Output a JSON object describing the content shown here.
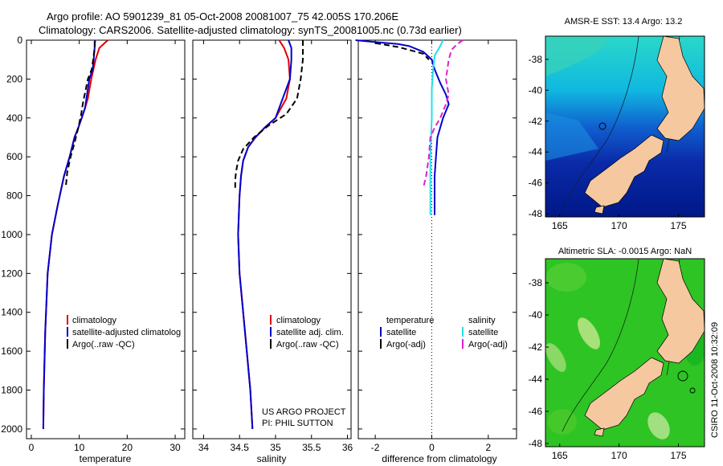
{
  "header": {
    "line1": "Argo profile: AO 5901239_81 05-Oct-2008 20081007_75 42.005S 170.206E",
    "line2": "Climatology: CARS2006. Satellite-adjusted climatology: synTS_20081005.nc (0.73d earlier)"
  },
  "colors": {
    "red": "#e00000",
    "blue": "#0000d0",
    "black": "#000000",
    "cyan": "#22e0e8",
    "magenta": "#e020d0",
    "land": "#f5c8a0"
  },
  "project": {
    "line1": "US ARGO PROJECT",
    "line2": "PI: PHIL SUTTON"
  },
  "credit": "CSIRO 11-Oct-2008 10:32:09",
  "chart_data": [
    {
      "id": "temperature",
      "type": "line",
      "xlabel": "temperature",
      "ylabel": "",
      "xlim": [
        -1,
        32
      ],
      "ylim": [
        2050,
        0
      ],
      "xticks": [
        0,
        10,
        20,
        30
      ],
      "yticks": [
        0,
        200,
        400,
        600,
        800,
        1000,
        1200,
        1400,
        1600,
        1800,
        2000
      ],
      "legend": [
        "climatology",
        "satellite-adjusted climatolog",
        "Argo(..raw -QC)"
      ],
      "series": [
        {
          "name": "climatology",
          "color": "red",
          "dash": false,
          "x": [
            16.0,
            15.5,
            14.2,
            13.4,
            12.5,
            11.8,
            11.2,
            10.5,
            9.8,
            9.0,
            8.0,
            6.8,
            5.5,
            4.3,
            3.4,
            2.9,
            2.6,
            2.5
          ],
          "y": [
            0,
            10,
            40,
            100,
            200,
            300,
            350,
            400,
            450,
            500,
            600,
            700,
            850,
            1000,
            1200,
            1500,
            1800,
            2000
          ]
        },
        {
          "name": "satellite-adjusted climatology",
          "color": "blue",
          "dash": false,
          "x": [
            13.3,
            13.2,
            13.0,
            12.8,
            12.1,
            11.5,
            11.2,
            10.5,
            9.8,
            9.0,
            8.0,
            6.8,
            5.5,
            4.3,
            3.4,
            2.9,
            2.6,
            2.5
          ],
          "y": [
            0,
            40,
            100,
            150,
            200,
            300,
            350,
            400,
            450,
            500,
            600,
            700,
            850,
            1000,
            1200,
            1500,
            1800,
            2000
          ]
        },
        {
          "name": "Argo(..raw -QC)",
          "color": "black",
          "dash": true,
          "x": [
            13.2,
            13.2,
            13.1,
            12.9,
            12.6,
            11.8,
            11.3,
            10.8,
            10.4,
            9.8,
            9.1,
            8.2,
            7.5,
            7.2
          ],
          "y": [
            5,
            30,
            60,
            100,
            150,
            200,
            260,
            320,
            380,
            450,
            520,
            600,
            680,
            750
          ]
        }
      ]
    },
    {
      "id": "salinity",
      "type": "line",
      "xlabel": "salinity",
      "ylabel": "",
      "xlim": [
        33.85,
        36.05
      ],
      "ylim": [
        2050,
        0
      ],
      "xticks": [
        34,
        34.5,
        35,
        35.5,
        36
      ],
      "legend": [
        "climatology",
        "satellite adj. clim.",
        "Argo(..raw -QC)"
      ],
      "series": [
        {
          "name": "climatology",
          "color": "red",
          "dash": false,
          "x": [
            35.05,
            35.12,
            35.18,
            35.2,
            35.15,
            35.0,
            34.85,
            34.72,
            34.62,
            34.55,
            34.52,
            34.5,
            34.49,
            34.48,
            34.5,
            34.55,
            34.6,
            34.65,
            34.68
          ],
          "y": [
            0,
            40,
            100,
            200,
            300,
            400,
            450,
            500,
            550,
            620,
            700,
            800,
            900,
            1000,
            1200,
            1400,
            1600,
            1800,
            2000
          ]
        },
        {
          "name": "satellite adj. clim.",
          "color": "blue",
          "dash": false,
          "x": [
            35.18,
            35.22,
            35.22,
            35.2,
            35.1,
            35.0,
            34.85,
            34.72,
            34.62,
            34.55,
            34.52,
            34.5,
            34.49,
            34.48,
            34.5,
            34.55,
            34.6,
            34.65,
            34.68
          ],
          "y": [
            0,
            40,
            100,
            200,
            300,
            400,
            450,
            500,
            550,
            620,
            700,
            800,
            900,
            1000,
            1200,
            1400,
            1600,
            1800,
            2000
          ]
        },
        {
          "name": "Argo(..raw -QC)",
          "color": "black",
          "dash": true,
          "x": [
            35.38,
            35.38,
            35.38,
            35.35,
            35.3,
            35.15,
            34.9,
            34.7,
            34.55,
            34.48,
            34.45,
            34.44,
            34.44
          ],
          "y": [
            0,
            30,
            100,
            200,
            300,
            380,
            440,
            500,
            560,
            620,
            680,
            720,
            760
          ]
        }
      ]
    },
    {
      "id": "difference",
      "type": "line",
      "xlabel": "difference from climatology",
      "ylabel": "",
      "xlim": [
        -2.6,
        3.0
      ],
      "ylim": [
        2050,
        0
      ],
      "xticks": [
        -2,
        0,
        2
      ],
      "legend": [
        "temperature",
        "satellite",
        "Argo(-adj)",
        "salinity",
        "satellite",
        "Argo(-adj)"
      ],
      "series": [
        {
          "name": "temperature satellite",
          "color": "blue",
          "dash": false,
          "x": [
            -2.7,
            -2.0,
            -1.2,
            -0.8,
            -0.3,
            0.0,
            0.1,
            0.3,
            0.5,
            0.6,
            0.4,
            0.3,
            0.2,
            0.15,
            0.1,
            0.1
          ],
          "y": [
            0,
            10,
            20,
            30,
            60,
            100,
            150,
            220,
            280,
            330,
            400,
            450,
            500,
            600,
            700,
            900
          ]
        },
        {
          "name": "temperature Argo(-adj)",
          "color": "black",
          "dash": true,
          "x": [
            -2.0,
            -1.6,
            -1.2,
            -0.8,
            -0.3,
            -0.1
          ],
          "y": [
            15,
            25,
            35,
            50,
            70,
            100
          ]
        },
        {
          "name": "salinity satellite",
          "color": "cyan",
          "dash": false,
          "x": [
            0.4,
            0.3,
            0.1,
            0.05,
            0.0,
            0.0,
            -0.05,
            -0.05
          ],
          "y": [
            0,
            30,
            80,
            150,
            250,
            400,
            600,
            900
          ]
        },
        {
          "name": "salinity Argo(-adj)",
          "color": "magenta",
          "dash": true,
          "x": [
            1.1,
            0.9,
            0.7,
            0.6,
            0.5,
            0.6,
            0.5,
            0.3,
            0.1,
            -0.05,
            -0.1,
            -0.2,
            -0.3
          ],
          "y": [
            0,
            20,
            50,
            100,
            200,
            280,
            330,
            400,
            450,
            500,
            600,
            700,
            760
          ]
        }
      ]
    },
    {
      "id": "sst-map",
      "type": "heatmap",
      "title": "AMSR-E SST: 13.4 Argo: 13.2",
      "xticks": [
        165,
        170,
        175
      ],
      "yticks": [
        -38,
        -40,
        -42,
        -44,
        -46,
        -48
      ],
      "xlim": [
        163.8,
        177.2
      ],
      "ylim": [
        -48.2,
        -36.5
      ]
    },
    {
      "id": "sla-map",
      "type": "heatmap",
      "title": "Altimetric SLA: -0.0015 Argo: NaN",
      "xticks": [
        165,
        170,
        175
      ],
      "yticks": [
        -38,
        -40,
        -42,
        -44,
        -46,
        -48
      ],
      "xlim": [
        163.8,
        177.2
      ],
      "ylim": [
        -48.2,
        -36.5
      ]
    }
  ]
}
